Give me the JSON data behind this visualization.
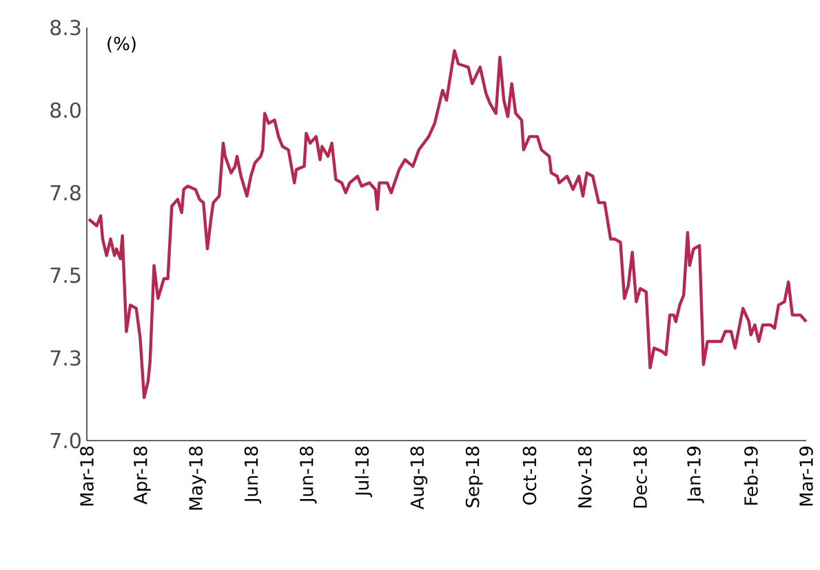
{
  "chart_data": {
    "type": "line",
    "annotations": [
      "(%)"
    ],
    "xlim": [
      "2018-03-09",
      "2019-03-08"
    ],
    "ylim": [
      7.0,
      8.25
    ],
    "xticks": [
      {
        "value": "2018-03-09",
        "label": "Mar-18"
      },
      {
        "value": "2018-04-06",
        "label": "Apr-18"
      },
      {
        "value": "2018-05-04",
        "label": "May-18"
      },
      {
        "value": "2018-06-01",
        "label": "Jun-18"
      },
      {
        "value": "2018-06-29",
        "label": "Jun-18"
      },
      {
        "value": "2018-07-27",
        "label": "Jul-18"
      },
      {
        "value": "2018-08-24",
        "label": "Aug-18"
      },
      {
        "value": "2018-09-21",
        "label": "Sep-18"
      },
      {
        "value": "2018-10-19",
        "label": "Oct-18"
      },
      {
        "value": "2018-11-16",
        "label": "Nov-18"
      },
      {
        "value": "2018-12-14",
        "label": "Dec-18"
      },
      {
        "value": "2019-01-11",
        "label": "Jan-19"
      },
      {
        "value": "2019-02-08",
        "label": "Feb-19"
      },
      {
        "value": "2019-03-08",
        "label": "Mar-19"
      }
    ],
    "yticks": [
      {
        "value": 7.0,
        "label": "7.0"
      },
      {
        "value": 7.25,
        "label": "7.3"
      },
      {
        "value": 7.5,
        "label": "7.5"
      },
      {
        "value": 7.75,
        "label": "7.8"
      },
      {
        "value": 8.0,
        "label": "8.0"
      },
      {
        "value": 8.25,
        "label": "8.3"
      }
    ],
    "series": [
      {
        "color": "#b5284f",
        "x": [
          "2018-03-10",
          "2018-03-14",
          "2018-03-16",
          "2018-03-17",
          "2018-03-19",
          "2018-03-21",
          "2018-03-23",
          "2018-03-24",
          "2018-03-26",
          "2018-03-27",
          "2018-03-29",
          "2018-03-31",
          "2018-04-03",
          "2018-04-05",
          "2018-04-07",
          "2018-04-09",
          "2018-04-10",
          "2018-04-12",
          "2018-04-14",
          "2018-04-17",
          "2018-04-19",
          "2018-04-21",
          "2018-04-24",
          "2018-04-26",
          "2018-04-27",
          "2018-04-29",
          "2018-05-03",
          "2018-05-05",
          "2018-05-07",
          "2018-05-09",
          "2018-05-11",
          "2018-05-12",
          "2018-05-15",
          "2018-05-17",
          "2018-05-18",
          "2018-05-21",
          "2018-05-23",
          "2018-05-24",
          "2018-05-26",
          "2018-05-29",
          "2018-05-31",
          "2018-06-02",
          "2018-06-05",
          "2018-06-06",
          "2018-06-07",
          "2018-06-09",
          "2018-06-12",
          "2018-06-14",
          "2018-06-16",
          "2018-06-19",
          "2018-06-22",
          "2018-06-23",
          "2018-06-27",
          "2018-06-28",
          "2018-06-30",
          "2018-07-03",
          "2018-07-05",
          "2018-07-06",
          "2018-07-09",
          "2018-07-11",
          "2018-07-13",
          "2018-07-16",
          "2018-07-18",
          "2018-07-20",
          "2018-07-24",
          "2018-07-26",
          "2018-07-30",
          "2018-08-02",
          "2018-08-03",
          "2018-08-04",
          "2018-08-08",
          "2018-08-10",
          "2018-08-14",
          "2018-08-17",
          "2018-08-21",
          "2018-08-24",
          "2018-08-29",
          "2018-09-01",
          "2018-09-05",
          "2018-09-07",
          "2018-09-11",
          "2018-09-13",
          "2018-09-18",
          "2018-09-20",
          "2018-09-24",
          "2018-09-27",
          "2018-09-29",
          "2018-10-02",
          "2018-10-04",
          "2018-10-06",
          "2018-10-08",
          "2018-10-10",
          "2018-10-12",
          "2018-10-15",
          "2018-10-16",
          "2018-10-19",
          "2018-10-23",
          "2018-10-25",
          "2018-10-29",
          "2018-10-30",
          "2018-11-02",
          "2018-11-03",
          "2018-11-07",
          "2018-11-10",
          "2018-11-13",
          "2018-11-15",
          "2018-11-17",
          "2018-11-20",
          "2018-11-23",
          "2018-11-26",
          "2018-11-29",
          "2018-12-01",
          "2018-12-04",
          "2018-12-06",
          "2018-12-08",
          "2018-12-10",
          "2018-12-12",
          "2018-12-14",
          "2018-12-17",
          "2018-12-19",
          "2018-12-21",
          "2018-12-25",
          "2018-12-27",
          "2018-12-29",
          "2018-12-31",
          "2019-01-01",
          "2019-01-03",
          "2019-01-05",
          "2019-01-07",
          "2019-01-08",
          "2019-01-10",
          "2019-01-13",
          "2019-01-15",
          "2019-01-17",
          "2019-01-21",
          "2019-01-24",
          "2019-01-26",
          "2019-01-29",
          "2019-01-31",
          "2019-02-04",
          "2019-02-07",
          "2019-02-08",
          "2019-02-10",
          "2019-02-12",
          "2019-02-14",
          "2019-02-18",
          "2019-02-20",
          "2019-02-22",
          "2019-02-25",
          "2019-02-27",
          "2019-03-01",
          "2019-03-05",
          "2019-03-08"
        ],
        "values": [
          7.67,
          7.65,
          7.68,
          7.61,
          7.56,
          7.61,
          7.56,
          7.58,
          7.55,
          7.62,
          7.33,
          7.41,
          7.4,
          7.31,
          7.13,
          7.18,
          7.24,
          7.53,
          7.43,
          7.49,
          7.49,
          7.71,
          7.73,
          7.69,
          7.76,
          7.77,
          7.76,
          7.73,
          7.72,
          7.58,
          7.68,
          7.72,
          7.74,
          7.9,
          7.86,
          7.81,
          7.83,
          7.86,
          7.8,
          7.74,
          7.8,
          7.84,
          7.86,
          7.88,
          7.99,
          7.96,
          7.97,
          7.92,
          7.89,
          7.88,
          7.78,
          7.82,
          7.83,
          7.93,
          7.9,
          7.92,
          7.85,
          7.89,
          7.86,
          7.9,
          7.79,
          7.78,
          7.75,
          7.78,
          7.8,
          7.77,
          7.78,
          7.76,
          7.7,
          7.78,
          7.78,
          7.75,
          7.82,
          7.85,
          7.83,
          7.88,
          7.92,
          7.96,
          8.06,
          8.03,
          8.18,
          8.14,
          8.13,
          8.08,
          8.13,
          8.05,
          8.02,
          7.99,
          8.16,
          8.03,
          7.98,
          8.08,
          7.99,
          7.97,
          7.88,
          7.92,
          7.92,
          7.88,
          7.86,
          7.81,
          7.8,
          7.78,
          7.8,
          7.76,
          7.8,
          7.74,
          7.81,
          7.8,
          7.72,
          7.72,
          7.61,
          7.61,
          7.6,
          7.43,
          7.47,
          7.57,
          7.42,
          7.46,
          7.45,
          7.22,
          7.28,
          7.27,
          7.26,
          7.38,
          7.38,
          7.36,
          7.41,
          7.44,
          7.63,
          7.53,
          7.58,
          7.59,
          7.23,
          7.3,
          7.3,
          7.3,
          7.33,
          7.33,
          7.28,
          7.4,
          7.36,
          7.32,
          7.35,
          7.3,
          7.35,
          7.35,
          7.34,
          7.41,
          7.42,
          7.48,
          7.38,
          7.38,
          7.36
        ]
      }
    ]
  }
}
